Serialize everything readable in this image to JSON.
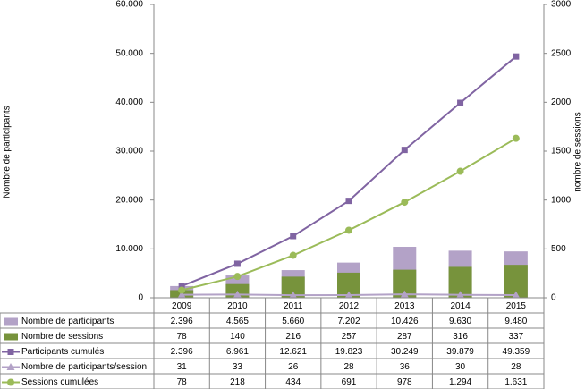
{
  "chart_data": {
    "type": "bar-line",
    "categories": [
      "2009",
      "2010",
      "2011",
      "2012",
      "2013",
      "2014",
      "2015"
    ],
    "ylabel": "Nombre de participants",
    "y2label": "nombre de sessions",
    "ylim": [
      0,
      60000
    ],
    "yticks": [
      0,
      {
        "value": 10000,
        "label": "10.000"
      },
      {
        "value": 20000,
        "label": "20.000"
      },
      {
        "value": 30000,
        "label": "30.000"
      },
      {
        "value": 40000,
        "label": "40.000"
      },
      {
        "value": 50000,
        "label": "50.000"
      },
      {
        "value": 60000,
        "label": "60.000"
      }
    ],
    "y2lim": [
      0,
      3000
    ],
    "y2ticks": [
      0,
      500,
      1000,
      1500,
      2000,
      2500,
      3000
    ],
    "grid": false,
    "series": [
      {
        "name": "Nombre de participants",
        "kind": "bar",
        "color": "#b3a2c7",
        "values": [
          2396,
          4565,
          5660,
          7202,
          10426,
          9630,
          9480
        ],
        "value_labels": [
          "2.396",
          "4.565",
          "5.660",
          "7.202",
          "10.426",
          "9.630",
          "9.480"
        ]
      },
      {
        "name": "Nombre de sessions",
        "kind": "bar",
        "axis": "y2",
        "color": "#77933c",
        "values": [
          78,
          140,
          216,
          257,
          287,
          316,
          337
        ]
      },
      {
        "name": "Participants cumulés",
        "kind": "line",
        "marker": "square",
        "color": "#8064a2",
        "values": [
          2396,
          6961,
          12621,
          19823,
          30249,
          39879,
          49359
        ],
        "value_labels": [
          "2.396",
          "6.961",
          "12.621",
          "19.823",
          "30.249",
          "39.879",
          "49.359"
        ]
      },
      {
        "name": "Nombre de participants/session",
        "kind": "line",
        "marker": "triangle",
        "axis": "y2",
        "color": "#b3a2c7",
        "values": [
          31,
          33,
          26,
          28,
          36,
          30,
          28
        ]
      },
      {
        "name": "Sessions cumulées",
        "kind": "line",
        "marker": "circle",
        "axis": "y2",
        "color": "#9bbb59",
        "values": [
          78,
          218,
          434,
          691,
          978,
          1294,
          1631
        ],
        "value_labels": [
          "78",
          "218",
          "434",
          "691",
          "978",
          "1.294",
          "1.631"
        ]
      }
    ]
  }
}
